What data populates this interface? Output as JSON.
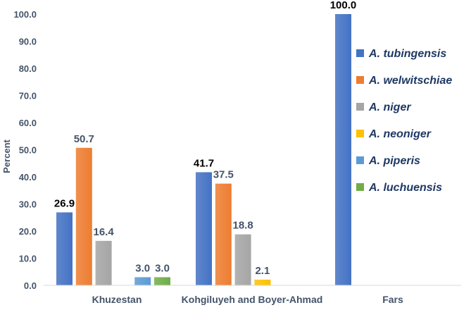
{
  "chart_data": {
    "type": "bar",
    "title": "",
    "xlabel": "",
    "ylabel": "Percent",
    "ylim": [
      0,
      100
    ],
    "ytick_step": 10,
    "grid": false,
    "legend_position": "right",
    "categories": [
      "Khuzestan",
      "Kohgiluyeh and Boyer-Ahmad",
      "Fars"
    ],
    "series": [
      {
        "name": "A. tubingensis",
        "color": "#4472c4",
        "label_color": "#000000",
        "values": [
          26.9,
          41.7,
          100.0
        ]
      },
      {
        "name": "A. welwitschiae",
        "color": "#ed7d31",
        "label_color": "#44546a",
        "values": [
          50.7,
          37.5,
          null
        ]
      },
      {
        "name": "A. niger",
        "color": "#a5a5a5",
        "label_color": "#44546a",
        "values": [
          16.4,
          18.8,
          null
        ]
      },
      {
        "name": "A. neoniger",
        "color": "#ffc000",
        "label_color": "#44546a",
        "values": [
          null,
          2.1,
          null
        ]
      },
      {
        "name": "A. piperis",
        "color": "#5b9bd5",
        "label_color": "#44546a",
        "values": [
          3.0,
          null,
          null
        ]
      },
      {
        "name": "A. luchuensis",
        "color": "#70ad47",
        "label_color": "#44546a",
        "values": [
          3.0,
          null,
          null
        ]
      }
    ]
  }
}
